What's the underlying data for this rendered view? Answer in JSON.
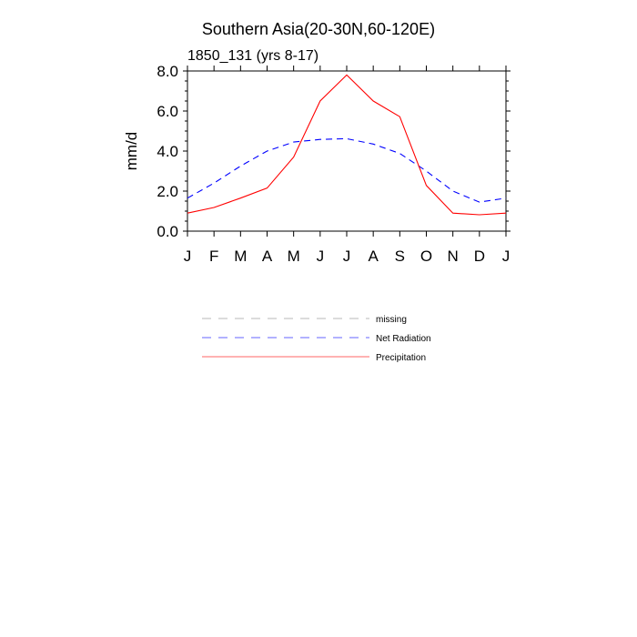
{
  "chart_data": {
    "type": "line",
    "title": "Southern Asia(20-30N,60-120E)",
    "subtitle": "1850_131 (yrs 8-17)",
    "ylabel": "mm/d",
    "xlabel": "",
    "categories": [
      "J",
      "F",
      "M",
      "A",
      "M",
      "J",
      "J",
      "A",
      "S",
      "O",
      "N",
      "D",
      "J"
    ],
    "ylim": [
      0,
      8
    ],
    "yticks": [
      "0.0",
      "2.0",
      "4.0",
      "6.0",
      "8.0"
    ],
    "grid": false,
    "series": [
      {
        "name": "Net Radiation",
        "color": "#0000ff",
        "dash": "dashed",
        "values": [
          1.65,
          2.4,
          3.25,
          4.0,
          4.45,
          4.58,
          4.62,
          4.35,
          3.88,
          3.0,
          2.0,
          1.45,
          1.65
        ]
      },
      {
        "name": "Precipitation",
        "color": "#ff0000",
        "dash": "solid",
        "values": [
          0.9,
          1.18,
          1.65,
          2.15,
          3.7,
          6.5,
          7.8,
          6.5,
          5.72,
          2.28,
          0.9,
          0.82,
          0.9
        ]
      }
    ],
    "legend": {
      "placement": "below",
      "entries": [
        {
          "label": "missing",
          "color": "#888888",
          "dash": "dashed"
        },
        {
          "label": "Net Radiation",
          "color": "#0000ff",
          "dash": "dashed"
        },
        {
          "label": "Precipitation",
          "color": "#ff0000",
          "dash": "solid"
        }
      ]
    }
  }
}
